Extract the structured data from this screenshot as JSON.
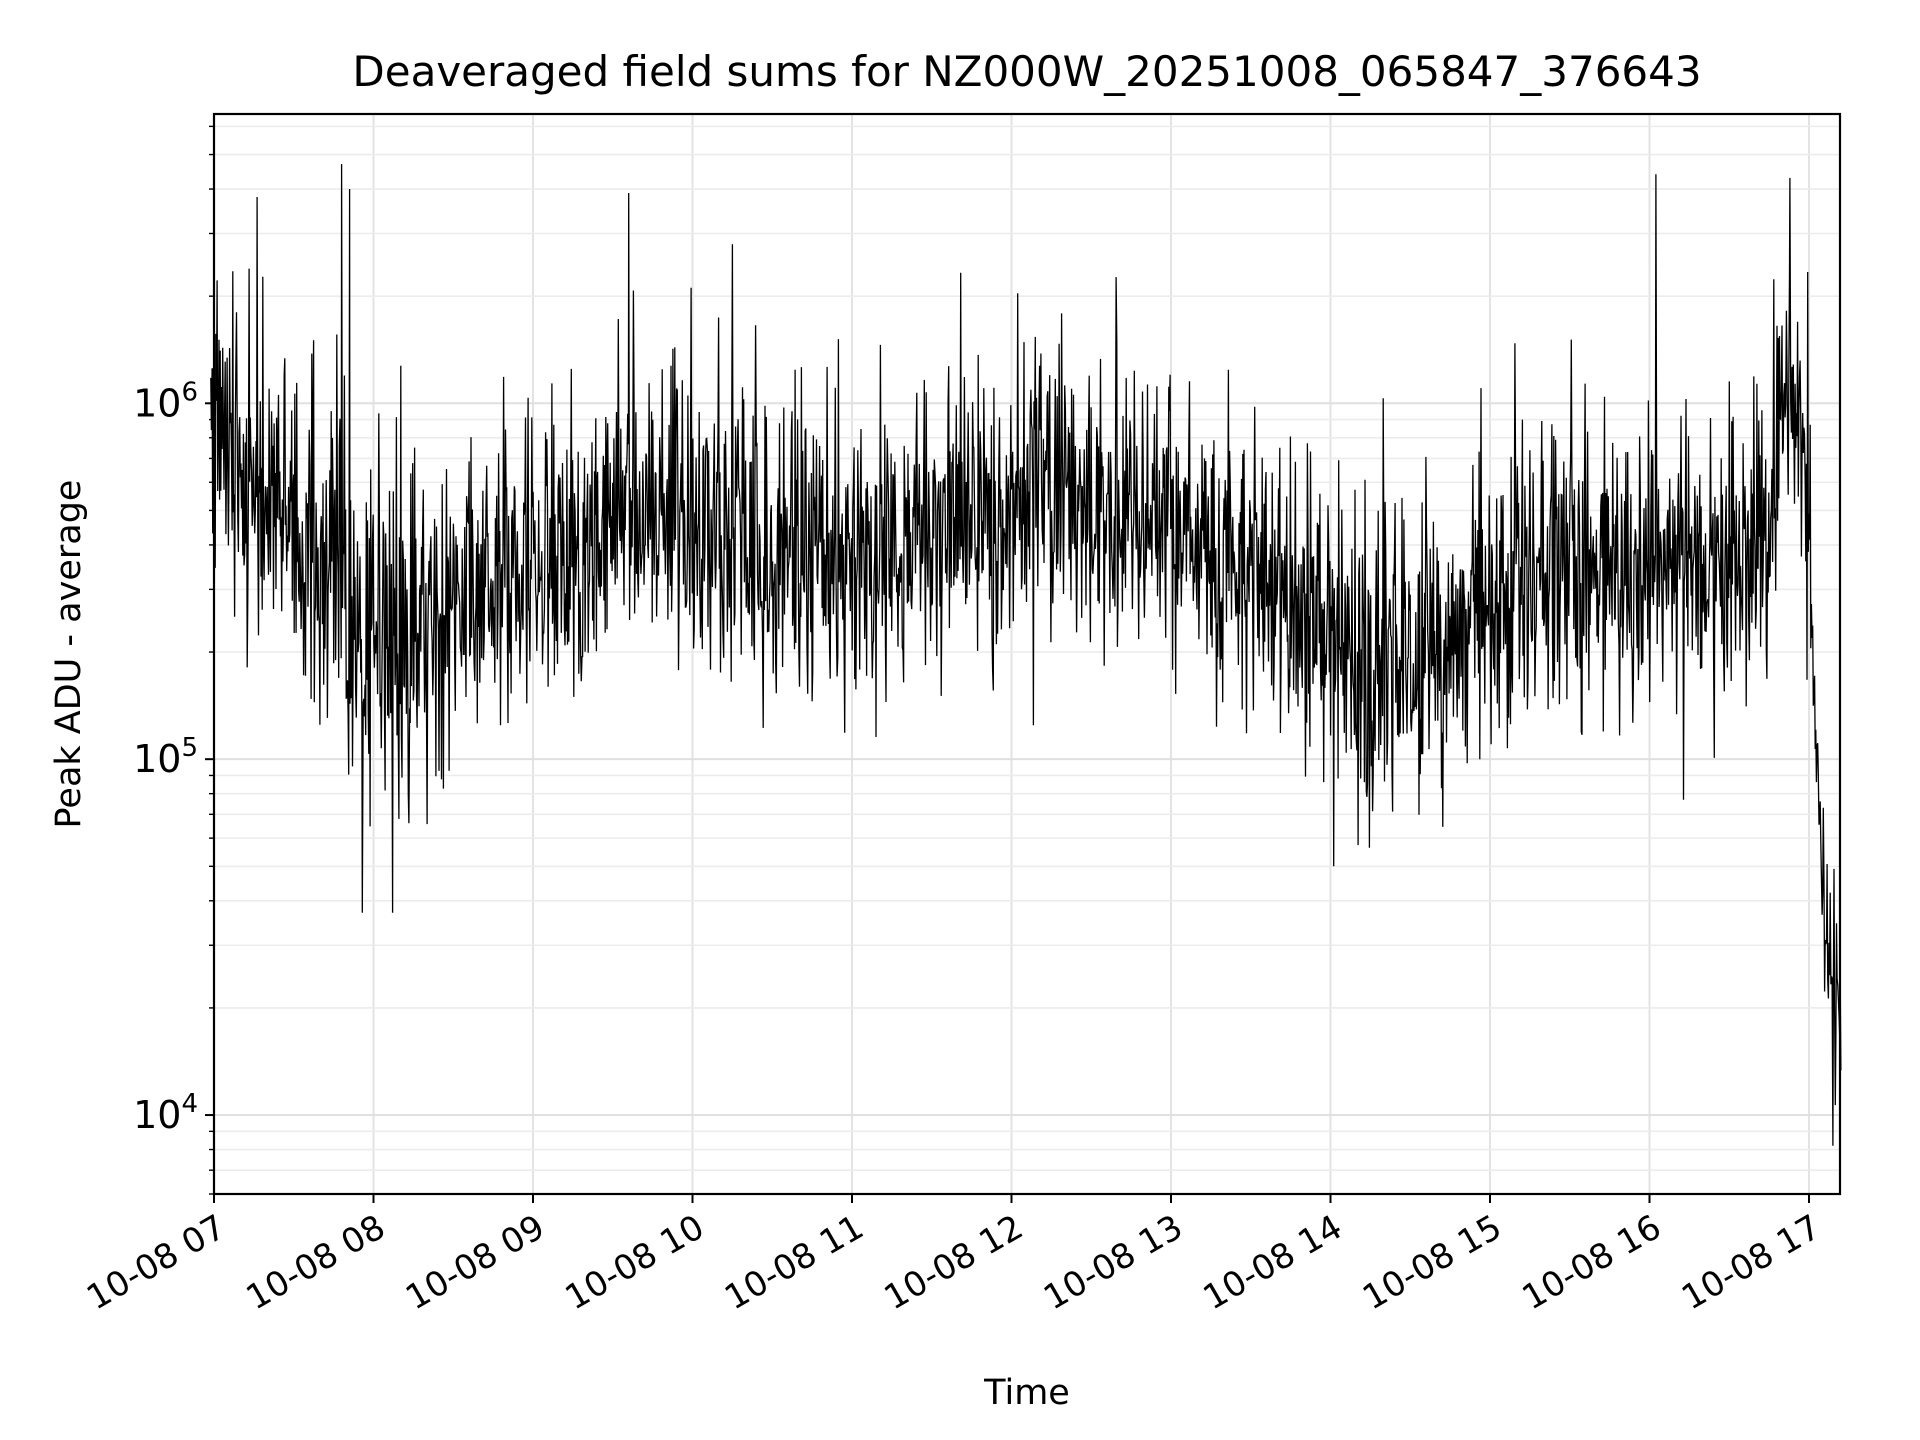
{
  "chart_data": {
    "type": "line",
    "title": "Deaveraged field sums for NZ000W_20251008_065847_376643",
    "xlabel": "Time",
    "ylabel": "Peak ADU - average",
    "yscale": "log",
    "ylim": [
      6000,
      6500000
    ],
    "x_range_hours": [
      6.98,
      17.2
    ],
    "grid": true,
    "line_color": "#000000",
    "x_ticks": [
      {
        "hour": 7,
        "label": "10-08 07"
      },
      {
        "hour": 8,
        "label": "10-08 08"
      },
      {
        "hour": 9,
        "label": "10-08 09"
      },
      {
        "hour": 10,
        "label": "10-08 10"
      },
      {
        "hour": 11,
        "label": "10-08 11"
      },
      {
        "hour": 12,
        "label": "10-08 12"
      },
      {
        "hour": 13,
        "label": "10-08 13"
      },
      {
        "hour": 14,
        "label": "10-08 14"
      },
      {
        "hour": 15,
        "label": "10-08 15"
      },
      {
        "hour": 16,
        "label": "10-08 16"
      },
      {
        "hour": 17,
        "label": "10-08 17"
      }
    ],
    "y_ticks": [
      {
        "value": 10000,
        "base": "10",
        "exp": "4"
      },
      {
        "value": 100000,
        "base": "10",
        "exp": "5"
      },
      {
        "value": 1000000,
        "base": "10",
        "exp": "6"
      }
    ],
    "series": [
      {
        "name": "Deaveraged field sum",
        "trend_hours": [
          6.98,
          7.2,
          7.5,
          7.8,
          8.0,
          8.3,
          8.6,
          9.0,
          9.3,
          9.7,
          10.0,
          10.5,
          11.0,
          11.5,
          12.0,
          12.5,
          13.0,
          13.5,
          14.0,
          14.3,
          14.6,
          15.0,
          15.5,
          16.0,
          16.5,
          16.75,
          16.85,
          16.95,
          17.0,
          17.05,
          17.1,
          17.15,
          17.2
        ],
        "trend_values": [
          750000,
          700000,
          500000,
          300000,
          200000,
          250000,
          300000,
          350000,
          400000,
          500000,
          450000,
          380000,
          350000,
          420000,
          550000,
          500000,
          420000,
          350000,
          220000,
          180000,
          200000,
          300000,
          350000,
          330000,
          350000,
          450000,
          900000,
          800000,
          400000,
          100000,
          35000,
          25000,
          20000
        ],
        "peaks": [
          {
            "hour": 7.27,
            "value": 3800000
          },
          {
            "hour": 7.8,
            "value": 4700000
          },
          {
            "hour": 7.85,
            "value": 4000000
          },
          {
            "hour": 9.6,
            "value": 3900000
          },
          {
            "hour": 10.25,
            "value": 2600000
          },
          {
            "hour": 10.25,
            "value": 2800000
          },
          {
            "hour": 16.04,
            "value": 4400000
          },
          {
            "hour": 16.88,
            "value": 4300000
          }
        ],
        "troughs": [
          {
            "hour": 7.93,
            "value": 37000
          },
          {
            "hour": 8.12,
            "value": 37000
          },
          {
            "hour": 14.02,
            "value": 50000
          },
          {
            "hour": 17.15,
            "value": 8200
          }
        ]
      }
    ]
  }
}
